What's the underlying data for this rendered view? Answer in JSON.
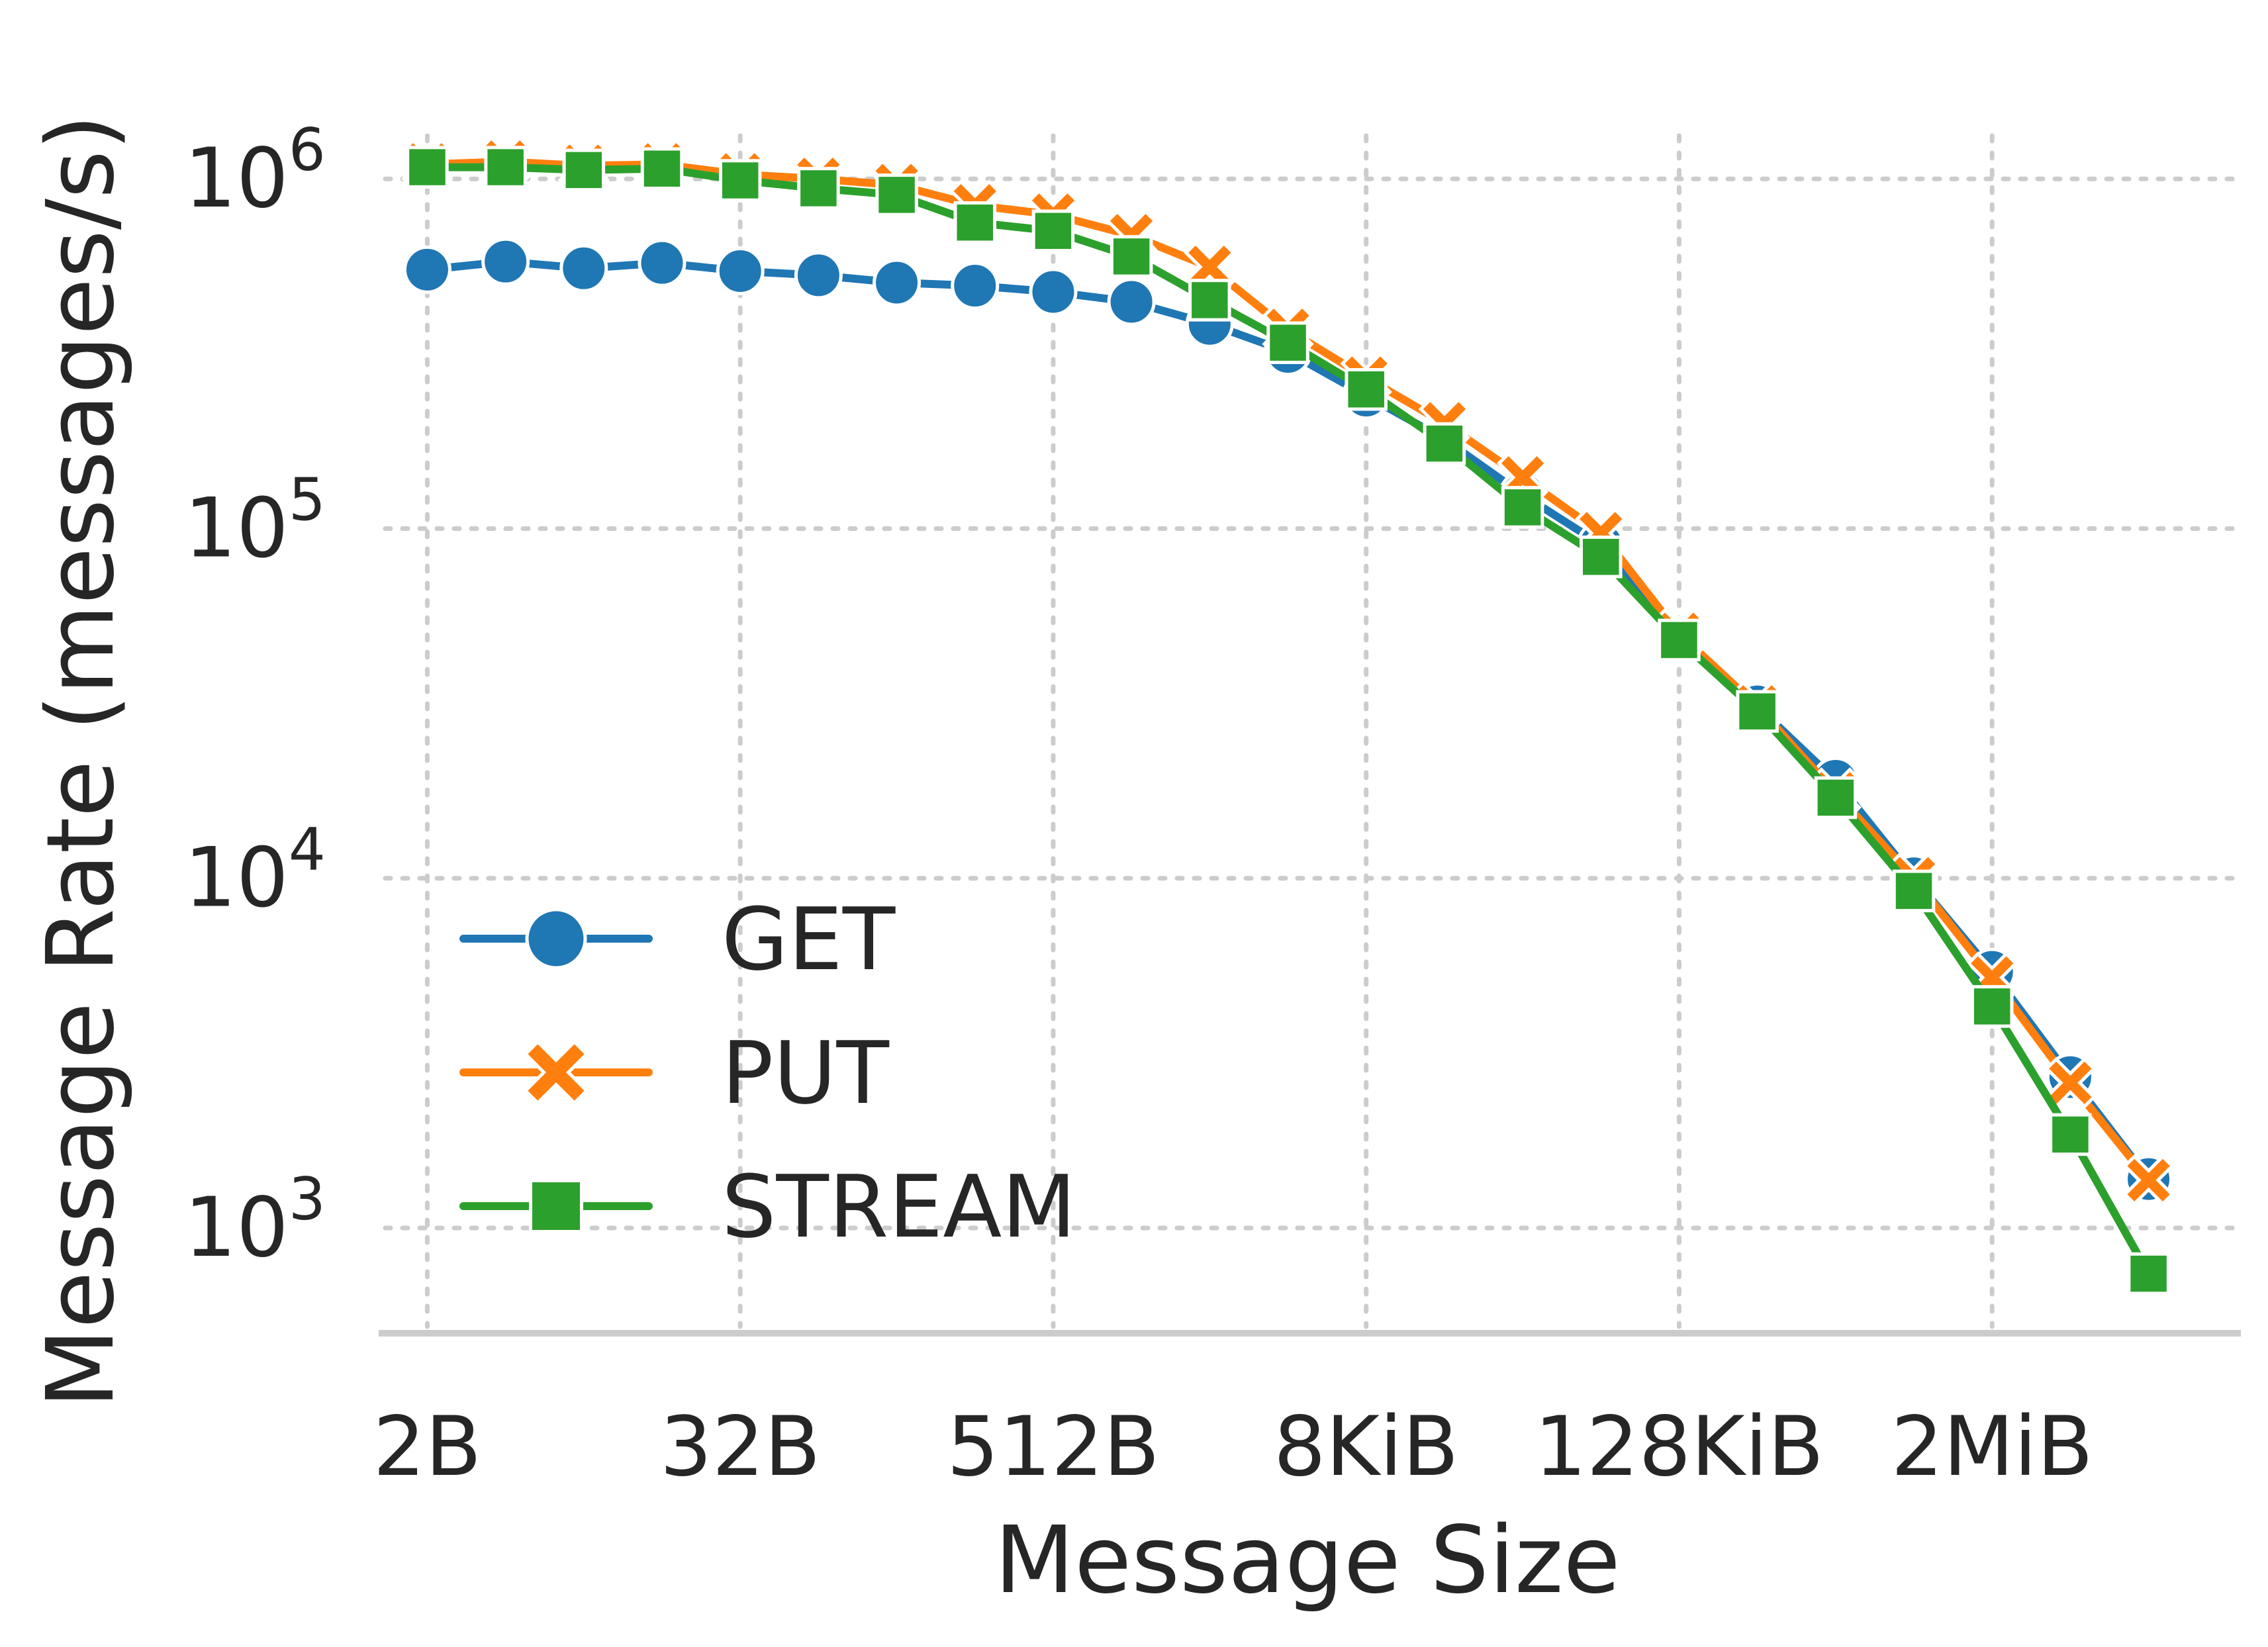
{
  "chart_data": {
    "type": "line",
    "title": "",
    "xlabel": "Message Size",
    "ylabel": "Message Rate (messages/s)",
    "x_scale": "log2",
    "y_scale": "log10",
    "x_ticks": [
      {
        "value": 2,
        "label": "2B"
      },
      {
        "value": 32,
        "label": "32B"
      },
      {
        "value": 512,
        "label": "512B"
      },
      {
        "value": 8192,
        "label": "8KiB"
      },
      {
        "value": 131072,
        "label": "128KiB"
      },
      {
        "value": 2097152,
        "label": "2MiB"
      }
    ],
    "y_ticks": [
      {
        "value": 1000,
        "base": "10",
        "exp": "3"
      },
      {
        "value": 10000,
        "base": "10",
        "exp": "4"
      },
      {
        "value": 100000,
        "base": "10",
        "exp": "5"
      },
      {
        "value": 1000000,
        "base": "10",
        "exp": "6"
      }
    ],
    "xlim": [
      1.3,
      19000000
    ],
    "ylim": [
      500,
      2500000
    ],
    "grid": true,
    "legend_position": "lower-left",
    "x": [
      2,
      4,
      8,
      16,
      32,
      64,
      128,
      256,
      512,
      1024,
      2048,
      4096,
      8192,
      16384,
      32768,
      65536,
      131072,
      262144,
      524288,
      1048576,
      2097152,
      4194304,
      8388608
    ],
    "series": [
      {
        "name": "GET",
        "color": "#1f77b4",
        "marker": "circle",
        "values": [
          550000,
          580000,
          555000,
          575000,
          545000,
          530000,
          505000,
          495000,
          475000,
          445000,
          385000,
          320000,
          240000,
          180000,
          125000,
          90000,
          48000,
          31000,
          19000,
          10000,
          5400,
          2700,
          1380
        ]
      },
      {
        "name": "PUT",
        "color": "#ff7f0e",
        "marker": "x",
        "values": [
          1100000,
          1120000,
          1090000,
          1100000,
          1030000,
          1000000,
          960000,
          840000,
          790000,
          690000,
          560000,
          370000,
          270000,
          200000,
          140000,
          97000,
          50000,
          31000,
          17500,
          10000,
          5200,
          2600,
          1370
        ]
      },
      {
        "name": "STREAM",
        "color": "#2ca02c",
        "marker": "square",
        "values": [
          1080000,
          1080000,
          1060000,
          1070000,
          990000,
          940000,
          900000,
          750000,
          710000,
          600000,
          450000,
          340000,
          250000,
          175000,
          115000,
          83000,
          48000,
          30000,
          17000,
          9200,
          4300,
          1850,
          740
        ]
      }
    ]
  }
}
